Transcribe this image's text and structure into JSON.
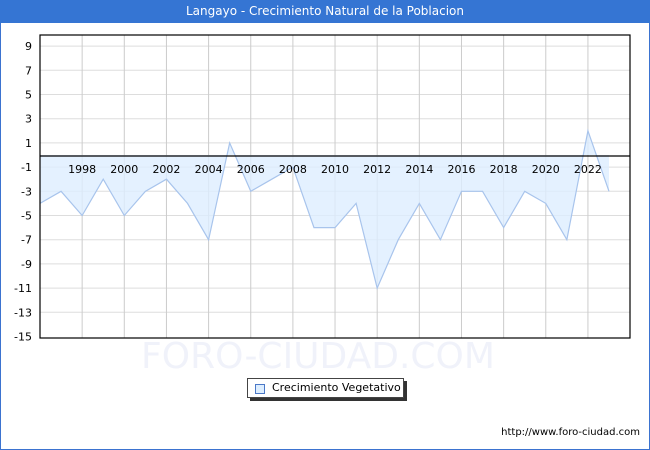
{
  "title": "Langayo - Crecimiento Natural de la Poblacion",
  "legend": {
    "label": "Crecimiento Vegetativo"
  },
  "watermark": "FORO-CIUDAD.COM",
  "footer": "http://www.foro-ciudad.com",
  "colors": {
    "titlebar": "#3575d3",
    "line": "#a8c4ec",
    "fill": "#ddeeff",
    "grid": "#dddddd"
  },
  "chart_data": {
    "type": "area",
    "title": "Langayo - Crecimiento Natural de la Poblacion",
    "xlabel": "",
    "ylabel": "",
    "ylim": [
      -15,
      10
    ],
    "yticks": [
      9,
      7,
      5,
      3,
      1,
      -1,
      -3,
      -5,
      -7,
      -9,
      -11,
      -13,
      -15
    ],
    "xticks": [
      1998,
      2000,
      2002,
      2004,
      2006,
      2008,
      2010,
      2012,
      2014,
      2016,
      2018,
      2020,
      2022
    ],
    "x": [
      1996,
      1997,
      1998,
      1999,
      2000,
      2001,
      2002,
      2003,
      2004,
      2005,
      2006,
      2007,
      2008,
      2009,
      2010,
      2011,
      2012,
      2013,
      2014,
      2015,
      2016,
      2017,
      2018,
      2019,
      2020,
      2021,
      2022,
      2023
    ],
    "series": [
      {
        "name": "Crecimiento Vegetativo",
        "values": [
          -4,
          -3,
          -5,
          -2,
          -5,
          -3,
          -2,
          -4,
          -7,
          1,
          -3,
          -2,
          -1,
          -6,
          -6,
          -4,
          -11,
          -7,
          -4,
          -7,
          -3,
          -3,
          -6,
          -3,
          -4,
          -7,
          2,
          -3
        ]
      }
    ],
    "grid": true,
    "legend_position": "bottom"
  }
}
